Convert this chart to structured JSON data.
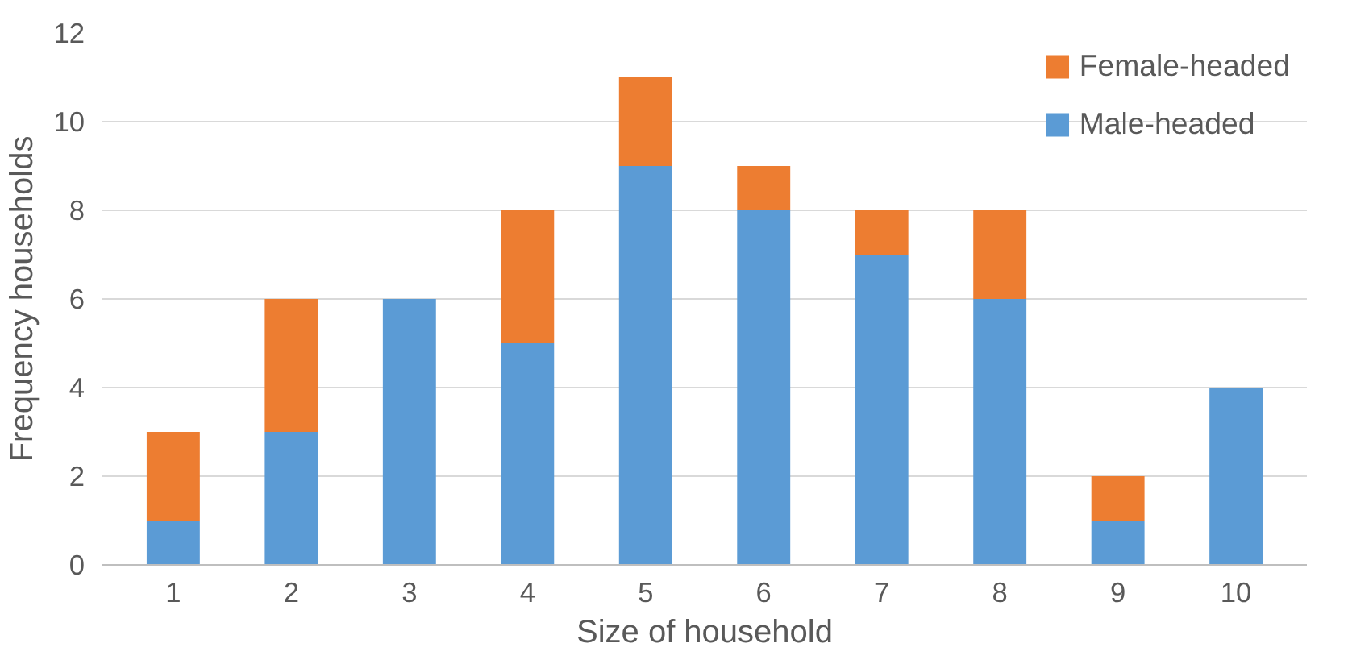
{
  "chart_data": {
    "type": "bar",
    "stacked": true,
    "xlabel": "Size of household",
    "ylabel": "Frequency households",
    "categories": [
      "1",
      "2",
      "3",
      "4",
      "5",
      "6",
      "7",
      "8",
      "9",
      "10"
    ],
    "series": [
      {
        "name": "Male-headed",
        "color": "#5b9bd5",
        "values": [
          1,
          3,
          6,
          5,
          9,
          8,
          7,
          6,
          1,
          4
        ]
      },
      {
        "name": "Female-headed",
        "color": "#ed7d31",
        "values": [
          2,
          3,
          null,
          3,
          2,
          1,
          1,
          2,
          1,
          null
        ]
      }
    ],
    "ylim": [
      0,
      12
    ],
    "yticks": [
      0,
      2,
      4,
      6,
      8,
      10,
      12
    ],
    "grid": "y",
    "legend": "top right"
  }
}
